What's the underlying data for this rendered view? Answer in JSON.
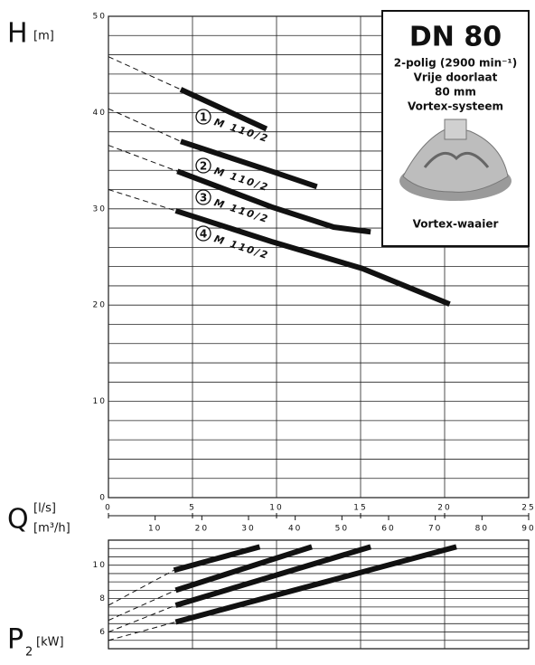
{
  "page": {
    "h_label": "H",
    "h_unit": "[m]",
    "q_label": "Q",
    "q_unit_ls": "[l/s]",
    "q_unit_m3h": "[m³/h]",
    "p_label": "P",
    "p_sub": "2",
    "p_unit": "[kW]"
  },
  "info_box": {
    "title": "DN 80",
    "lines": [
      "2-polig (2900 min⁻¹)",
      "Vrije doorlaat",
      "80 mm",
      "Vortex-systeem"
    ],
    "caption": "Vortex-waaier"
  },
  "chart_data": [
    {
      "type": "line",
      "xlim": [
        0,
        25
      ],
      "xticks": [
        0,
        5,
        10,
        15,
        20,
        25
      ],
      "x2lim": [
        0,
        90
      ],
      "x2ticks": [
        10,
        20,
        30,
        40,
        50,
        60,
        70,
        80,
        90
      ],
      "ylim": [
        0,
        50
      ],
      "yticks": [
        0,
        10,
        20,
        30,
        40,
        50
      ],
      "ygrid_minor": [
        2,
        4,
        6,
        8,
        12,
        14,
        16,
        18,
        22,
        24,
        26,
        28,
        32,
        34,
        36,
        38,
        42,
        44,
        46,
        48
      ],
      "grid": true,
      "color": "#111",
      "series": [
        {
          "name": "M 110/2",
          "number": "1",
          "x": [
            4.3,
            9.4
          ],
          "values": [
            42.4,
            38.3
          ],
          "ext_x": 0,
          "ext_value": 45.8
        },
        {
          "name": "M 110/2",
          "number": "2",
          "x": [
            4.3,
            9.7,
            12.4
          ],
          "values": [
            37.0,
            33.9,
            32.3
          ],
          "ext_x": 0,
          "ext_value": 40.4
        },
        {
          "name": "M 110/2",
          "number": "3",
          "x": [
            4.1,
            9.7,
            13.4,
            15.6
          ],
          "values": [
            33.9,
            30.2,
            28.1,
            27.6
          ],
          "ext_x": 0,
          "ext_value": 36.6
        },
        {
          "name": "M 110/2",
          "number": "4",
          "x": [
            4.0,
            9.7,
            15.1,
            20.3
          ],
          "values": [
            29.8,
            26.6,
            23.8,
            20.1
          ],
          "ext_x": 0,
          "ext_value": 32.0
        }
      ]
    },
    {
      "type": "line",
      "xlim": [
        0,
        25
      ],
      "xticks": [
        5,
        10,
        15,
        20
      ],
      "ylim": [
        5,
        11.5
      ],
      "yticks": [
        6,
        8,
        10
      ],
      "ygrid_minor": [
        5.5,
        6.5,
        7,
        7.5,
        8.5,
        9,
        9.5,
        10.5,
        11
      ],
      "grid": true,
      "color": "#111",
      "series": [
        {
          "x": [
            3.9,
            9.0
          ],
          "values": [
            9.7,
            11.1
          ],
          "ext_x": 0,
          "ext_value": 7.6
        },
        {
          "x": [
            4.0,
            12.1
          ],
          "values": [
            8.5,
            11.1
          ],
          "ext_x": 0,
          "ext_value": 6.7
        },
        {
          "x": [
            4.0,
            15.6
          ],
          "values": [
            7.6,
            11.1
          ],
          "ext_x": 0,
          "ext_value": 6.0
        },
        {
          "x": [
            4.0,
            20.7
          ],
          "values": [
            6.6,
            11.1
          ],
          "ext_x": 0,
          "ext_value": 5.5
        }
      ]
    }
  ]
}
